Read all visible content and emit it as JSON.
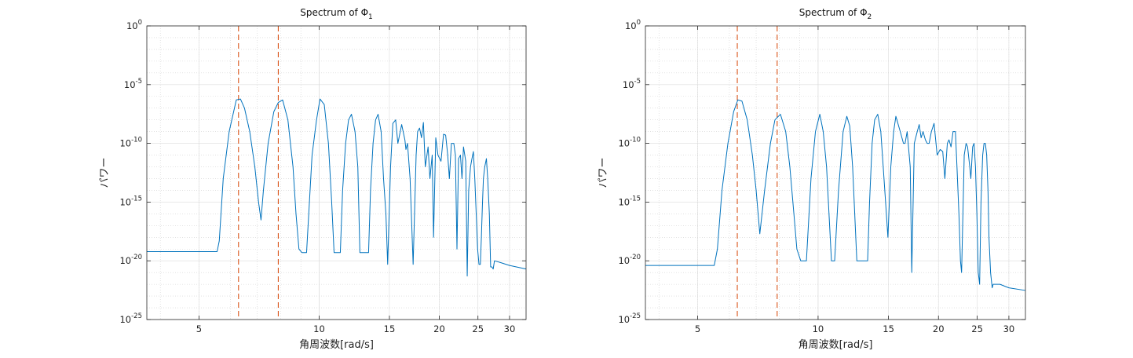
{
  "chart_data": [
    {
      "type": "line",
      "title": "Spectrum of Φ",
      "title_subscript": "1",
      "xlabel": "角周波数[rad/s]",
      "ylabel": "パワー",
      "xscale": "log",
      "yscale": "log",
      "xlim": [
        3.7,
        33
      ],
      "ylim": [
        1e-25,
        1
      ],
      "x_ticks": [
        5,
        10,
        15,
        20,
        25,
        30
      ],
      "y_ticks": [
        {
          "value": 1e-25,
          "base": "10",
          "exp": "-25"
        },
        {
          "value": 1e-20,
          "base": "10",
          "exp": "-20"
        },
        {
          "value": 1e-15,
          "base": "10",
          "exp": "-15"
        },
        {
          "value": 1e-10,
          "base": "10",
          "exp": "-10"
        },
        {
          "value": 1e-05,
          "base": "10",
          "exp": "-5"
        },
        {
          "value": 1,
          "base": "10",
          "exp": "0"
        }
      ],
      "grid": true,
      "line_color": "#0072bd",
      "marker_color": "#d95319",
      "vertical_markers": [
        6.28,
        7.9
      ],
      "series": [
        {
          "x": [
            3.7,
            5.55,
            5.62,
            5.75,
            5.95,
            6.2,
            6.35,
            6.5,
            6.7,
            6.9,
            7.05,
            7.15,
            7.25,
            7.45,
            7.7,
            7.9,
            8.1,
            8.35,
            8.6,
            8.75,
            8.9,
            9.05,
            9.3,
            9.6,
            9.85,
            10.05,
            10.3,
            10.55,
            10.75,
            10.9,
            11.3,
            11.45,
            11.65,
            11.85,
            12.05,
            12.3,
            12.5,
            12.65,
            13.3,
            13.45,
            13.65,
            13.85,
            14.05,
            14.3,
            14.5,
            14.7,
            14.85,
            15.1,
            15.3,
            15.55,
            15.75,
            16.1,
            16.4,
            16.5,
            16.65,
            16.9,
            17.2,
            17.5,
            17.65,
            17.85,
            18.05,
            18.25,
            18.45,
            18.75,
            18.95,
            19.2,
            19.35,
            19.6,
            19.85,
            20.2,
            20.5,
            20.75,
            21.0,
            21.2,
            21.45,
            21.75,
            21.95,
            22.15,
            22.35,
            22.6,
            22.8,
            23.0,
            23.3,
            23.5,
            23.7,
            23.95,
            24.15,
            24.35,
            24.55,
            24.75,
            24.95,
            25.15,
            25.35,
            25.5,
            25.65,
            25.8,
            26.0,
            26.25,
            26.45,
            26.7,
            26.9,
            27.1,
            27.3,
            27.5,
            28.5,
            30.0,
            33.0
          ],
          "y": [
            6e-20,
            6e-20,
            5e-19,
            1e-13,
            1e-09,
            5e-07,
            6e-07,
            1e-07,
            1e-09,
            1e-12,
            1e-15,
            3e-17,
            1e-14,
            1e-10,
            5e-08,
            3e-07,
            5e-07,
            1e-08,
            1e-12,
            1e-16,
            1e-19,
            5e-20,
            5e-20,
            1e-11,
            1e-08,
            6e-07,
            2e-07,
            1e-10,
            1e-15,
            5e-20,
            5e-20,
            1e-14,
            1e-10,
            1e-08,
            3e-08,
            1e-09,
            1e-12,
            5e-20,
            5e-20,
            1e-14,
            1e-10,
            1e-08,
            3e-08,
            1e-09,
            1e-13,
            1e-16,
            5e-21,
            1e-12,
            5e-09,
            1e-08,
            1e-10,
            4e-09,
            2e-10,
            3e-11,
            1e-10,
            1e-13,
            5e-21,
            1e-11,
            1e-09,
            2e-09,
            3e-10,
            6e-09,
            1e-12,
            5e-11,
            1e-13,
            1e-11,
            1e-18,
            3e-10,
            1e-11,
            3e-12,
            6e-10,
            5e-10,
            1e-11,
            1e-13,
            1e-10,
            1e-10,
            1e-11,
            1e-19,
            5e-12,
            1e-11,
            1e-13,
            5e-11,
            3e-12,
            5e-22,
            1e-14,
            1e-12,
            5e-12,
            2e-11,
            1e-13,
            1e-16,
            1e-19,
            5e-21,
            5e-21,
            1e-18,
            5e-16,
            1e-13,
            1e-12,
            5e-12,
            1e-13,
            1e-16,
            3e-21,
            3e-21,
            2e-21,
            1e-20,
            7e-21,
            4e-21,
            2e-21
          ]
        }
      ]
    },
    {
      "type": "line",
      "title": "Spectrum of Φ",
      "title_subscript": "2",
      "xlabel": "角周波数[rad/s]",
      "ylabel": "パワー",
      "xscale": "log",
      "yscale": "log",
      "xlim": [
        3.7,
        33
      ],
      "ylim": [
        1e-25,
        1
      ],
      "x_ticks": [
        5,
        10,
        15,
        20,
        25,
        30
      ],
      "y_ticks": [
        {
          "value": 1e-25,
          "base": "10",
          "exp": "-25"
        },
        {
          "value": 1e-20,
          "base": "10",
          "exp": "-20"
        },
        {
          "value": 1e-15,
          "base": "10",
          "exp": "-15"
        },
        {
          "value": 1e-10,
          "base": "10",
          "exp": "-10"
        },
        {
          "value": 1e-05,
          "base": "10",
          "exp": "-5"
        },
        {
          "value": 1,
          "base": "10",
          "exp": "0"
        }
      ],
      "grid": true,
      "line_color": "#0072bd",
      "marker_color": "#d95319",
      "vertical_markers": [
        6.28,
        7.9
      ],
      "series": [
        {
          "x": [
            3.7,
            5.5,
            5.6,
            5.75,
            5.95,
            6.15,
            6.3,
            6.45,
            6.65,
            6.85,
            7.0,
            7.15,
            7.35,
            7.6,
            7.8,
            8.05,
            8.3,
            8.5,
            8.7,
            8.85,
            9.05,
            9.35,
            9.6,
            9.85,
            10.1,
            10.3,
            10.5,
            10.8,
            11.0,
            11.25,
            11.55,
            11.8,
            12.0,
            12.2,
            12.5,
            13.3,
            13.45,
            13.65,
            13.85,
            14.1,
            14.35,
            14.55,
            14.75,
            14.95,
            15.2,
            15.45,
            15.65,
            16.05,
            16.35,
            16.5,
            16.7,
            17.0,
            17.15,
            17.4,
            17.7,
            17.9,
            18.1,
            18.3,
            18.55,
            18.75,
            18.95,
            19.2,
            19.5,
            19.85,
            20.2,
            20.5,
            20.75,
            21.05,
            21.25,
            21.5,
            21.75,
            22.05,
            22.25,
            22.5,
            22.7,
            22.85,
            23.2,
            23.45,
            23.65,
            23.95,
            24.1,
            24.35,
            24.55,
            24.75,
            24.95,
            25.15,
            25.35,
            25.55,
            25.8,
            26.0,
            26.2,
            26.4,
            26.6,
            26.75,
            27.0,
            27.25,
            27.4,
            28.5,
            30.0,
            33.0
          ],
          "y": [
            4e-21,
            4e-21,
            1e-19,
            1e-14,
            1e-10,
            5e-08,
            5e-07,
            4e-07,
            1e-08,
            1e-11,
            1e-14,
            2e-18,
            1e-14,
            1e-10,
            1e-08,
            3e-08,
            1e-09,
            1e-12,
            1e-16,
            1e-19,
            1e-20,
            1e-20,
            1e-13,
            1e-09,
            3e-08,
            1e-09,
            1e-12,
            1e-20,
            1e-20,
            1e-14,
            1e-09,
            2e-08,
            3e-09,
            1e-12,
            1e-20,
            1e-20,
            1e-15,
            1e-10,
            1e-08,
            3e-08,
            1e-09,
            1e-12,
            1e-15,
            1e-18,
            1e-12,
            1e-09,
            2e-08,
            1e-09,
            1e-10,
            1e-10,
            1e-09,
            1e-12,
            1e-21,
            1e-10,
            1e-09,
            4e-09,
            3e-10,
            1e-09,
            2e-10,
            1e-10,
            1e-10,
            1e-09,
            5e-09,
            1e-11,
            3e-11,
            2e-11,
            1e-13,
            1e-10,
            2e-10,
            5e-11,
            1e-09,
            1e-09,
            1e-12,
            1e-16,
            1e-20,
            1e-21,
            1e-11,
            1e-10,
            5e-11,
            1e-12,
            1e-13,
            5e-11,
            1e-10,
            1e-12,
            1e-16,
            1e-21,
            1e-22,
            1e-15,
            1e-11,
            1e-10,
            1e-10,
            1e-11,
            1e-14,
            1e-18,
            1e-21,
            5e-23,
            1e-22,
            1e-22,
            5e-23,
            3e-23
          ]
        }
      ]
    }
  ]
}
